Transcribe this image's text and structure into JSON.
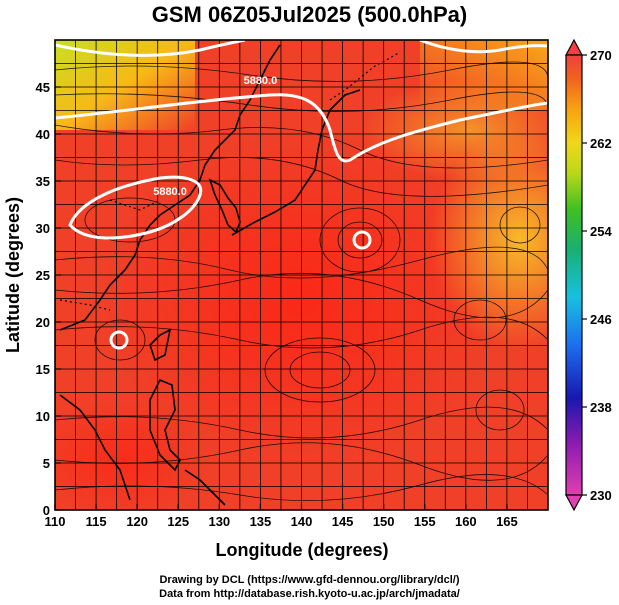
{
  "title": "GSM 06Z05Jul2025 (500.0hPa)",
  "x_axis": {
    "label": "Longitude (degrees)",
    "min": 110,
    "max": 170,
    "ticks": [
      "110",
      "115",
      "120",
      "125",
      "130",
      "135",
      "140",
      "145",
      "150",
      "155",
      "160",
      "165"
    ]
  },
  "y_axis": {
    "label": "Latitude  (degrees)",
    "min": 0,
    "max": 50,
    "ticks": [
      "0",
      "5",
      "10",
      "15",
      "20",
      "25",
      "30",
      "35",
      "40",
      "45"
    ]
  },
  "colorbar": {
    "min": 230,
    "max": 270,
    "ticks": [
      "230",
      "238",
      "246",
      "254",
      "262",
      "270"
    ]
  },
  "contours": [
    {
      "label": "5880.0",
      "lon": 135,
      "lat": 45.3
    },
    {
      "label": "5880.0",
      "lon": 124,
      "lat": 33.5
    }
  ],
  "colors": {
    "warm": "#f03c22",
    "hot": "#ff2a14",
    "orange": "#f89a10",
    "yellow": "#e8d818",
    "green": "#58c832"
  },
  "credits": {
    "line1": "Drawing by DCL (https://www.gfd-dennou.org/library/dcl/)",
    "line2": "Data from http://database.rish.kyoto-u.ac.jp/arch/jmadata/"
  }
}
